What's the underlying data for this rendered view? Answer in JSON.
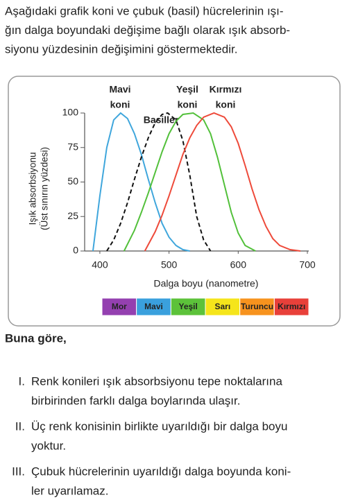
{
  "intro": {
    "lines": [
      "Aşağıdaki grafik koni ve çubuk (basil) hücrelerinin ışı-",
      "ğın dalga boyundaki değişime bağlı olarak ışık absorb-",
      "siyonu yüzdesinin değişimini göstermektedir."
    ]
  },
  "chart_data": {
    "type": "line",
    "y_label": [
      "Işık absorbsiyonu",
      "(Üst sınırın yüzdesi)"
    ],
    "x_label": "Dalga boyu (nanometre)",
    "xlim": [
      378,
      702
    ],
    "xticks": [
      400,
      500,
      600,
      700
    ],
    "ylim": [
      0,
      100
    ],
    "yticks": [
      0,
      25,
      50,
      75,
      100
    ],
    "series": [
      {
        "label": [
          "Mavi",
          "koni"
        ],
        "color": "#3fa6dc",
        "dashed": false,
        "x": [
          390,
          400,
          410,
          420,
          430,
          440,
          450,
          460,
          470,
          480,
          490,
          500,
          510,
          520,
          530
        ],
        "values": [
          0,
          40,
          75,
          95,
          100,
          96,
          85,
          70,
          52,
          35,
          20,
          10,
          4,
          1,
          0
        ]
      },
      {
        "label": [
          "Basiller"
        ],
        "color": "#111111",
        "dashed": true,
        "x": [
          410,
          420,
          430,
          440,
          450,
          460,
          470,
          480,
          490,
          498,
          510,
          520,
          530,
          540,
          550,
          560
        ],
        "values": [
          0,
          8,
          20,
          35,
          52,
          68,
          82,
          93,
          99,
          100,
          95,
          80,
          55,
          25,
          8,
          0
        ]
      },
      {
        "label": [
          "Yeşil",
          "koni"
        ],
        "color": "#52c03a",
        "dashed": false,
        "x": [
          435,
          450,
          460,
          470,
          480,
          490,
          500,
          510,
          520,
          535,
          550,
          560,
          570,
          580,
          590,
          600,
          610,
          625
        ],
        "values": [
          0,
          15,
          28,
          42,
          57,
          72,
          85,
          94,
          99,
          100,
          95,
          85,
          68,
          48,
          28,
          13,
          4,
          0
        ]
      },
      {
        "label": [
          "Kırmızı",
          "koni"
        ],
        "color": "#ee4a3a",
        "dashed": false,
        "x": [
          465,
          480,
          490,
          500,
          510,
          520,
          530,
          540,
          550,
          565,
          580,
          590,
          600,
          610,
          620,
          630,
          640,
          650,
          660,
          675,
          690
        ],
        "values": [
          0,
          14,
          26,
          40,
          55,
          70,
          82,
          91,
          97,
          100,
          97,
          90,
          78,
          62,
          45,
          30,
          18,
          9,
          4,
          1,
          0
        ]
      }
    ],
    "spectrum": [
      {
        "name": "Mor",
        "color": "#9440b0",
        "text_color": "#ffffff"
      },
      {
        "name": "Mavi",
        "color": "#3aa0dd",
        "text_color": "#ffffff"
      },
      {
        "name": "Yeşil",
        "color": "#5cc23a",
        "text_color": "#ffffff"
      },
      {
        "name": "Sarı",
        "color": "#f5e51b",
        "text_color": "#111111"
      },
      {
        "name": "Turuncu",
        "color": "#f7931e",
        "text_color": "#ffffff"
      },
      {
        "name": "Kırmızı",
        "color": "#e8403a",
        "text_color": "#ffffff"
      }
    ]
  },
  "question": {
    "lead": "Buna göre,",
    "items": [
      {
        "numeral": "I.",
        "lines": [
          "Renk konileri ışık absorbsiyonu tepe noktalarına",
          "birbirinden farklı dalga boylarında ulaşır."
        ]
      },
      {
        "numeral": "II.",
        "lines": [
          "Üç renk konisinin birlikte uyarıldığı bir dalga boyu",
          "yoktur."
        ]
      },
      {
        "numeral": "III.",
        "lines": [
          "Çubuk hücrelerinin uyarıldığı dalga boyunda koni-",
          "ler uyarılamaz."
        ]
      }
    ]
  }
}
